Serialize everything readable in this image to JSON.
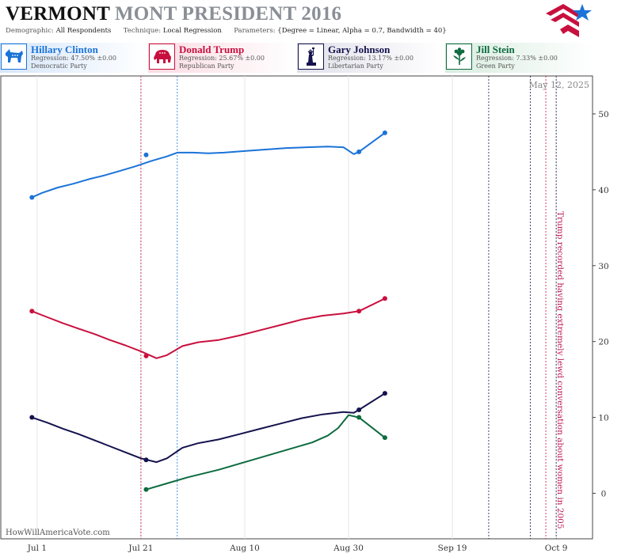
{
  "header": {
    "title_state": "VERMONT",
    "title_rest": "MONT PRESIDENT 2016",
    "demographic_label": "Demographic:",
    "demographic_value": "All Respondents",
    "technique_label": "Technique:",
    "technique_value": "Local Regression",
    "parameters_label": "Parameters:",
    "parameters_value": "{Degree = Linear, Alpha = 0.7, Bandwidth = 40}"
  },
  "logo_icon": "flag-star-logo-icon",
  "candidates": [
    {
      "name": "Hillary Clinton",
      "regression": "Regression: 47.50% ±0.00",
      "party": "Democratic Party",
      "color": "#1a73d8",
      "icon": "donkey-icon"
    },
    {
      "name": "Donald Trump",
      "regression": "Regression: 25.67% ±0.00",
      "party": "Republican Party",
      "color": "#c8103e",
      "icon": "elephant-icon"
    },
    {
      "name": "Gary Johnson",
      "regression": "Regression: 13.17% ±0.00",
      "party": "Libertarian Party",
      "color": "#14124e",
      "icon": "liberty-statue-icon"
    },
    {
      "name": "Jill Stein",
      "regression": "Regression: 7.33% ±0.00",
      "party": "Green Party",
      "color": "#0d6b3f",
      "icon": "flower-icon"
    }
  ],
  "date_stamp": "May 12, 2025",
  "attribution": "HowWillAmericaVote.com",
  "annotation": "Trump recorded having extremely lewd conversation about women in 2005",
  "chart_data": {
    "type": "line",
    "x_type": "date",
    "xlim": [
      "2016-06-24",
      "2016-10-16"
    ],
    "ylim": [
      -6,
      55
    ],
    "y_ticks": [
      0,
      10,
      20,
      30,
      40,
      50
    ],
    "x_ticks": [
      {
        "date": "2016-07-01",
        "label": "Jul 1"
      },
      {
        "date": "2016-07-21",
        "label": "Jul 21"
      },
      {
        "date": "2016-08-10",
        "label": "Aug 10"
      },
      {
        "date": "2016-08-30",
        "label": "Aug 30"
      },
      {
        "date": "2016-09-19",
        "label": "Sep 19"
      },
      {
        "date": "2016-10-09",
        "label": "Oct 9"
      }
    ],
    "grid": "vertical",
    "y_axis_side": "right",
    "events": [
      {
        "date": "2016-07-21",
        "color": "#c8103e"
      },
      {
        "date": "2016-07-28",
        "color": "#1a73d8"
      },
      {
        "date": "2016-09-26",
        "color": "#14124e"
      },
      {
        "date": "2016-10-04",
        "color": "#14124e"
      },
      {
        "date": "2016-10-07",
        "color": "#c8103e"
      },
      {
        "date": "2016-10-09",
        "color": "#14124e"
      }
    ],
    "series": [
      {
        "name": "Hillary Clinton",
        "color": "#1a73d8",
        "line": [
          [
            "2016-06-30",
            39.0
          ],
          [
            "2016-07-02",
            39.6
          ],
          [
            "2016-07-05",
            40.3
          ],
          [
            "2016-07-08",
            40.8
          ],
          [
            "2016-07-11",
            41.4
          ],
          [
            "2016-07-14",
            41.9
          ],
          [
            "2016-07-17",
            42.5
          ],
          [
            "2016-07-20",
            43.1
          ],
          [
            "2016-07-23",
            43.8
          ],
          [
            "2016-07-26",
            44.4
          ],
          [
            "2016-07-28",
            44.9
          ],
          [
            "2016-07-31",
            44.9
          ],
          [
            "2016-08-03",
            44.8
          ],
          [
            "2016-08-06",
            44.9
          ],
          [
            "2016-08-10",
            45.1
          ],
          [
            "2016-08-14",
            45.3
          ],
          [
            "2016-08-18",
            45.5
          ],
          [
            "2016-08-22",
            45.6
          ],
          [
            "2016-08-26",
            45.7
          ],
          [
            "2016-08-29",
            45.6
          ],
          [
            "2016-08-31",
            44.7
          ],
          [
            "2016-09-01",
            45.0
          ],
          [
            "2016-09-06",
            47.5
          ]
        ],
        "points": [
          [
            "2016-06-30",
            39.0
          ],
          [
            "2016-07-22",
            44.6
          ],
          [
            "2016-09-01",
            45.0
          ],
          [
            "2016-09-06",
            47.5
          ]
        ]
      },
      {
        "name": "Donald Trump",
        "color": "#c8103e",
        "line": [
          [
            "2016-06-30",
            24.0
          ],
          [
            "2016-07-03",
            23.2
          ],
          [
            "2016-07-06",
            22.4
          ],
          [
            "2016-07-09",
            21.7
          ],
          [
            "2016-07-12",
            21.0
          ],
          [
            "2016-07-15",
            20.2
          ],
          [
            "2016-07-18",
            19.5
          ],
          [
            "2016-07-21",
            18.7
          ],
          [
            "2016-07-24",
            17.8
          ],
          [
            "2016-07-26",
            18.2
          ],
          [
            "2016-07-29",
            19.4
          ],
          [
            "2016-08-01",
            19.9
          ],
          [
            "2016-08-05",
            20.2
          ],
          [
            "2016-08-09",
            20.8
          ],
          [
            "2016-08-13",
            21.5
          ],
          [
            "2016-08-17",
            22.2
          ],
          [
            "2016-08-21",
            22.9
          ],
          [
            "2016-08-25",
            23.4
          ],
          [
            "2016-08-29",
            23.7
          ],
          [
            "2016-09-01",
            24.0
          ],
          [
            "2016-09-06",
            25.67
          ]
        ],
        "points": [
          [
            "2016-06-30",
            24.0
          ],
          [
            "2016-07-22",
            18.1
          ],
          [
            "2016-09-01",
            24.0
          ],
          [
            "2016-09-06",
            25.67
          ]
        ]
      },
      {
        "name": "Gary Johnson",
        "color": "#14124e",
        "line": [
          [
            "2016-06-30",
            10.0
          ],
          [
            "2016-07-03",
            9.3
          ],
          [
            "2016-07-06",
            8.5
          ],
          [
            "2016-07-09",
            7.8
          ],
          [
            "2016-07-12",
            7.0
          ],
          [
            "2016-07-15",
            6.2
          ],
          [
            "2016-07-18",
            5.4
          ],
          [
            "2016-07-21",
            4.6
          ],
          [
            "2016-07-24",
            4.1
          ],
          [
            "2016-07-26",
            4.6
          ],
          [
            "2016-07-29",
            6.0
          ],
          [
            "2016-08-01",
            6.6
          ],
          [
            "2016-08-05",
            7.1
          ],
          [
            "2016-08-09",
            7.8
          ],
          [
            "2016-08-13",
            8.5
          ],
          [
            "2016-08-17",
            9.2
          ],
          [
            "2016-08-21",
            9.9
          ],
          [
            "2016-08-25",
            10.4
          ],
          [
            "2016-08-29",
            10.7
          ],
          [
            "2016-08-31",
            10.6
          ],
          [
            "2016-09-01",
            11.0
          ],
          [
            "2016-09-06",
            13.17
          ]
        ],
        "points": [
          [
            "2016-06-30",
            10.0
          ],
          [
            "2016-07-22",
            4.4
          ],
          [
            "2016-09-01",
            11.0
          ],
          [
            "2016-09-06",
            13.17
          ]
        ]
      },
      {
        "name": "Jill Stein",
        "color": "#0d6b3f",
        "line": [
          [
            "2016-07-22",
            0.5
          ],
          [
            "2016-07-26",
            1.3
          ],
          [
            "2016-07-30",
            2.1
          ],
          [
            "2016-08-05",
            3.1
          ],
          [
            "2016-08-11",
            4.3
          ],
          [
            "2016-08-17",
            5.5
          ],
          [
            "2016-08-23",
            6.7
          ],
          [
            "2016-08-26",
            7.6
          ],
          [
            "2016-08-28",
            8.6
          ],
          [
            "2016-08-30",
            10.3
          ],
          [
            "2016-09-01",
            10.0
          ],
          [
            "2016-09-06",
            7.33
          ]
        ],
        "points": [
          [
            "2016-07-22",
            0.5
          ],
          [
            "2016-09-01",
            10.0
          ],
          [
            "2016-09-06",
            7.33
          ]
        ]
      }
    ]
  }
}
